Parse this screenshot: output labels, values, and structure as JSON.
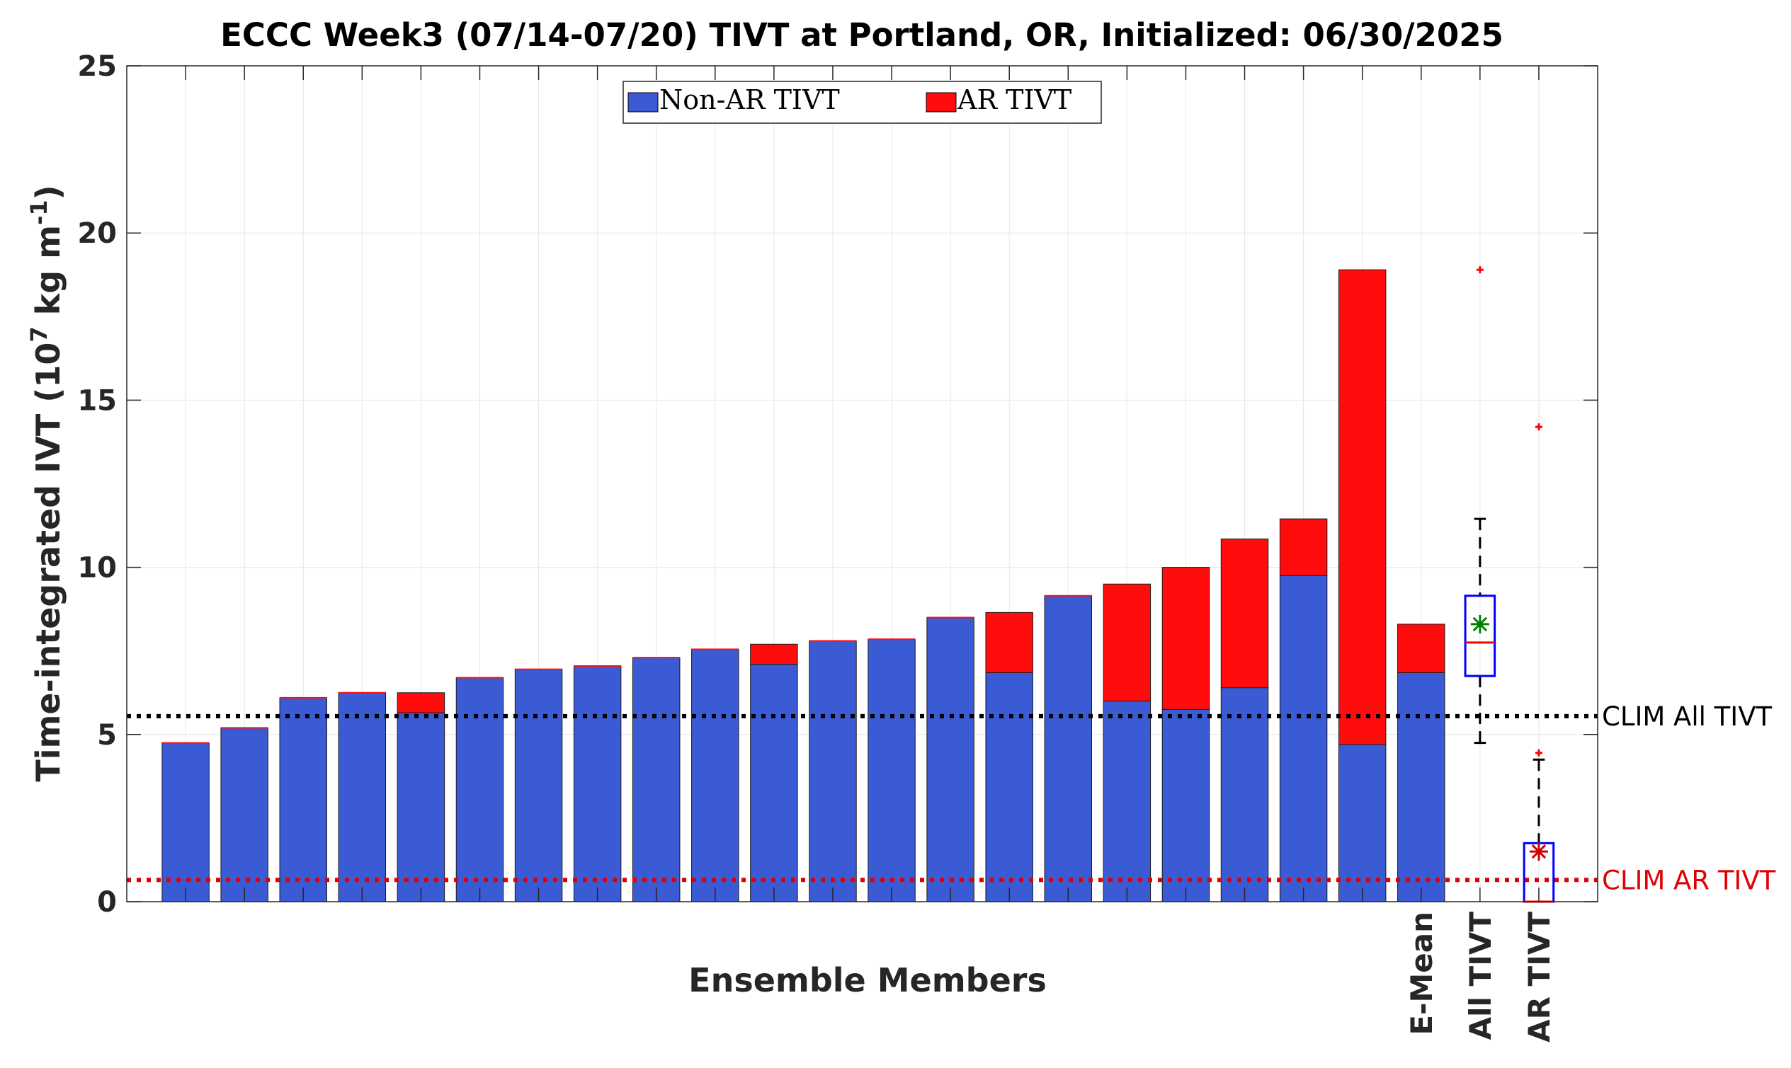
{
  "chart_data": {
    "type": "bar",
    "title": "ECCC Week3 (07/14-07/20) TIVT at Portland, OR, Initialized: 06/30/2025",
    "xlabel": "Ensemble Members",
    "ylabel_main": "Time-integrated IVT (10",
    "ylabel_exp": "7",
    "ylabel_mid": " kg m",
    "ylabel_exp2": "-1",
    "ylabel_end": ")",
    "ylim": [
      0,
      25
    ],
    "yticks": [
      "0",
      "5",
      "10",
      "15",
      "20",
      "25"
    ],
    "stacked": true,
    "grid": true,
    "legend_position": "top-center",
    "series": [
      {
        "name": "Non-AR TIVT",
        "color": "#3b5bd4",
        "values": [
          4.75,
          5.2,
          6.1,
          6.25,
          5.65,
          6.7,
          6.95,
          7.05,
          7.3,
          7.55,
          7.1,
          7.8,
          7.85,
          8.5,
          6.85,
          9.15,
          6.0,
          5.75,
          6.4,
          9.75,
          4.7,
          6.85
        ]
      },
      {
        "name": "AR TIVT",
        "color": "#ff0d0d",
        "values": [
          0,
          0,
          0,
          0,
          0.6,
          0,
          0,
          0,
          0,
          0,
          0.6,
          0,
          0,
          0,
          1.8,
          0,
          3.5,
          4.25,
          4.45,
          1.7,
          14.2,
          1.45
        ]
      }
    ],
    "category_labels": [
      "",
      "",
      "",
      "",
      "",
      "",
      "",
      "",
      "",
      "",
      "",
      "",
      "",
      "",
      "",
      "",
      "",
      "",
      "",
      "",
      "",
      "E-Mean",
      "All TIVT",
      "AR TIVT"
    ],
    "boxplots": [
      {
        "label": "All TIVT",
        "box_color": "#0000ff",
        "whisker_low": 4.75,
        "q1": 6.75,
        "median": 7.75,
        "q3": 9.15,
        "whisker_high": 11.45,
        "mean": 8.3,
        "mean_color": "#008000",
        "outliers": [
          18.9
        ]
      },
      {
        "label": "AR TIVT",
        "box_color": "#0000ff",
        "whisker_low": 0,
        "q1": 0,
        "median": 0,
        "q3": 1.75,
        "whisker_high": 4.25,
        "mean": 1.5,
        "mean_color": "#d00000",
        "outliers": [
          4.45,
          14.2
        ]
      }
    ],
    "reference_lines": [
      {
        "label": "CLIM All TIVT",
        "value": 5.55,
        "color": "#000000"
      },
      {
        "label": "CLIM AR TIVT",
        "value": 0.65,
        "color": "#e00000"
      }
    ]
  }
}
